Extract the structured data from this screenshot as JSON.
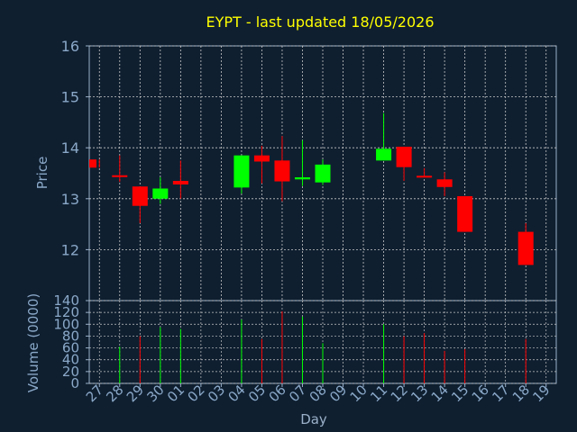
{
  "chart_data": [
    {
      "type": "candlestick",
      "title": "EYPT - last updated 18/05/2026",
      "xlabel": "",
      "ylabel": "Price",
      "ylim": [
        11,
        16
      ],
      "yticks": [
        "16",
        "15",
        "14",
        "13",
        "12"
      ],
      "grid": true,
      "candles": [
        {
          "day": "27",
          "x": 0,
          "open": 13.77,
          "close": 13.61,
          "high": 13.77,
          "low": 13.61
        },
        {
          "day": "28",
          "x": 1,
          "open": 13.46,
          "close": 13.45,
          "high": 13.85,
          "low": 13.33
        },
        {
          "day": "29",
          "x": 2,
          "open": 13.24,
          "close": 12.86,
          "high": 13.24,
          "low": 12.52
        },
        {
          "day": "30",
          "x": 3,
          "open": 13.0,
          "close": 13.2,
          "high": 13.42,
          "low": 12.9
        },
        {
          "day": "01",
          "x": 4,
          "open": 13.35,
          "close": 13.28,
          "high": 13.75,
          "low": 13.0
        },
        {
          "day": "04",
          "x": 7,
          "open": 13.22,
          "close": 13.85,
          "high": 13.85,
          "low": 13.1
        },
        {
          "day": "05",
          "x": 8,
          "open": 13.85,
          "close": 13.73,
          "high": 14.04,
          "low": 13.3
        },
        {
          "day": "06",
          "x": 9,
          "open": 13.75,
          "close": 13.34,
          "high": 14.23,
          "low": 12.95
        },
        {
          "day": "07",
          "x": 10,
          "open": 13.38,
          "close": 13.42,
          "high": 14.15,
          "low": 13.25
        },
        {
          "day": "08",
          "x": 11,
          "open": 13.32,
          "close": 13.67,
          "high": 13.77,
          "low": 13.27
        },
        {
          "day": "11",
          "x": 14,
          "open": 13.75,
          "close": 13.98,
          "high": 14.68,
          "low": 13.75
        },
        {
          "day": "12",
          "x": 15,
          "open": 14.02,
          "close": 13.62,
          "high": 14.02,
          "low": 13.35
        },
        {
          "day": "13",
          "x": 16,
          "open": 13.45,
          "close": 13.42,
          "high": 13.6,
          "low": 13.42
        },
        {
          "day": "14",
          "x": 17,
          "open": 13.38,
          "close": 13.23,
          "high": 13.52,
          "low": 13.05
        },
        {
          "day": "15",
          "x": 18,
          "open": 13.05,
          "close": 12.35,
          "high": 13.05,
          "low": 12.35
        },
        {
          "day": "18",
          "x": 21,
          "open": 12.35,
          "close": 11.7,
          "high": 12.52,
          "low": 11.7
        }
      ]
    },
    {
      "type": "bar",
      "title": "",
      "xlabel": "Day",
      "ylabel": "Volume (0000)",
      "ylim": [
        0,
        140
      ],
      "yticks": [
        "140",
        "120",
        "100",
        "80",
        "60",
        "40",
        "20",
        "0"
      ],
      "grid": true,
      "categories": [
        "27",
        "28",
        "29",
        "30",
        "01",
        "02",
        "03",
        "04",
        "05",
        "06",
        "07",
        "08",
        "09",
        "10",
        "11",
        "12",
        "13",
        "14",
        "15",
        "16",
        "17",
        "18",
        "19"
      ],
      "values": [
        0,
        62,
        80,
        95,
        92,
        0,
        0,
        108,
        75,
        122,
        113,
        68,
        0,
        0,
        100,
        80,
        85,
        55,
        58,
        0,
        0,
        75,
        0
      ],
      "up": [
        true,
        true,
        false,
        true,
        true,
        true,
        true,
        true,
        false,
        false,
        true,
        true,
        true,
        true,
        true,
        false,
        false,
        false,
        false,
        true,
        true,
        false,
        true
      ]
    }
  ],
  "colors": {
    "background": "#0f1f30",
    "title": "#ffff00",
    "axis_text": "#8aa8c8",
    "axis_line": "#9ab0c8",
    "grid": "#c8c8c8",
    "up": "#00ff00",
    "down": "#ff0000"
  }
}
